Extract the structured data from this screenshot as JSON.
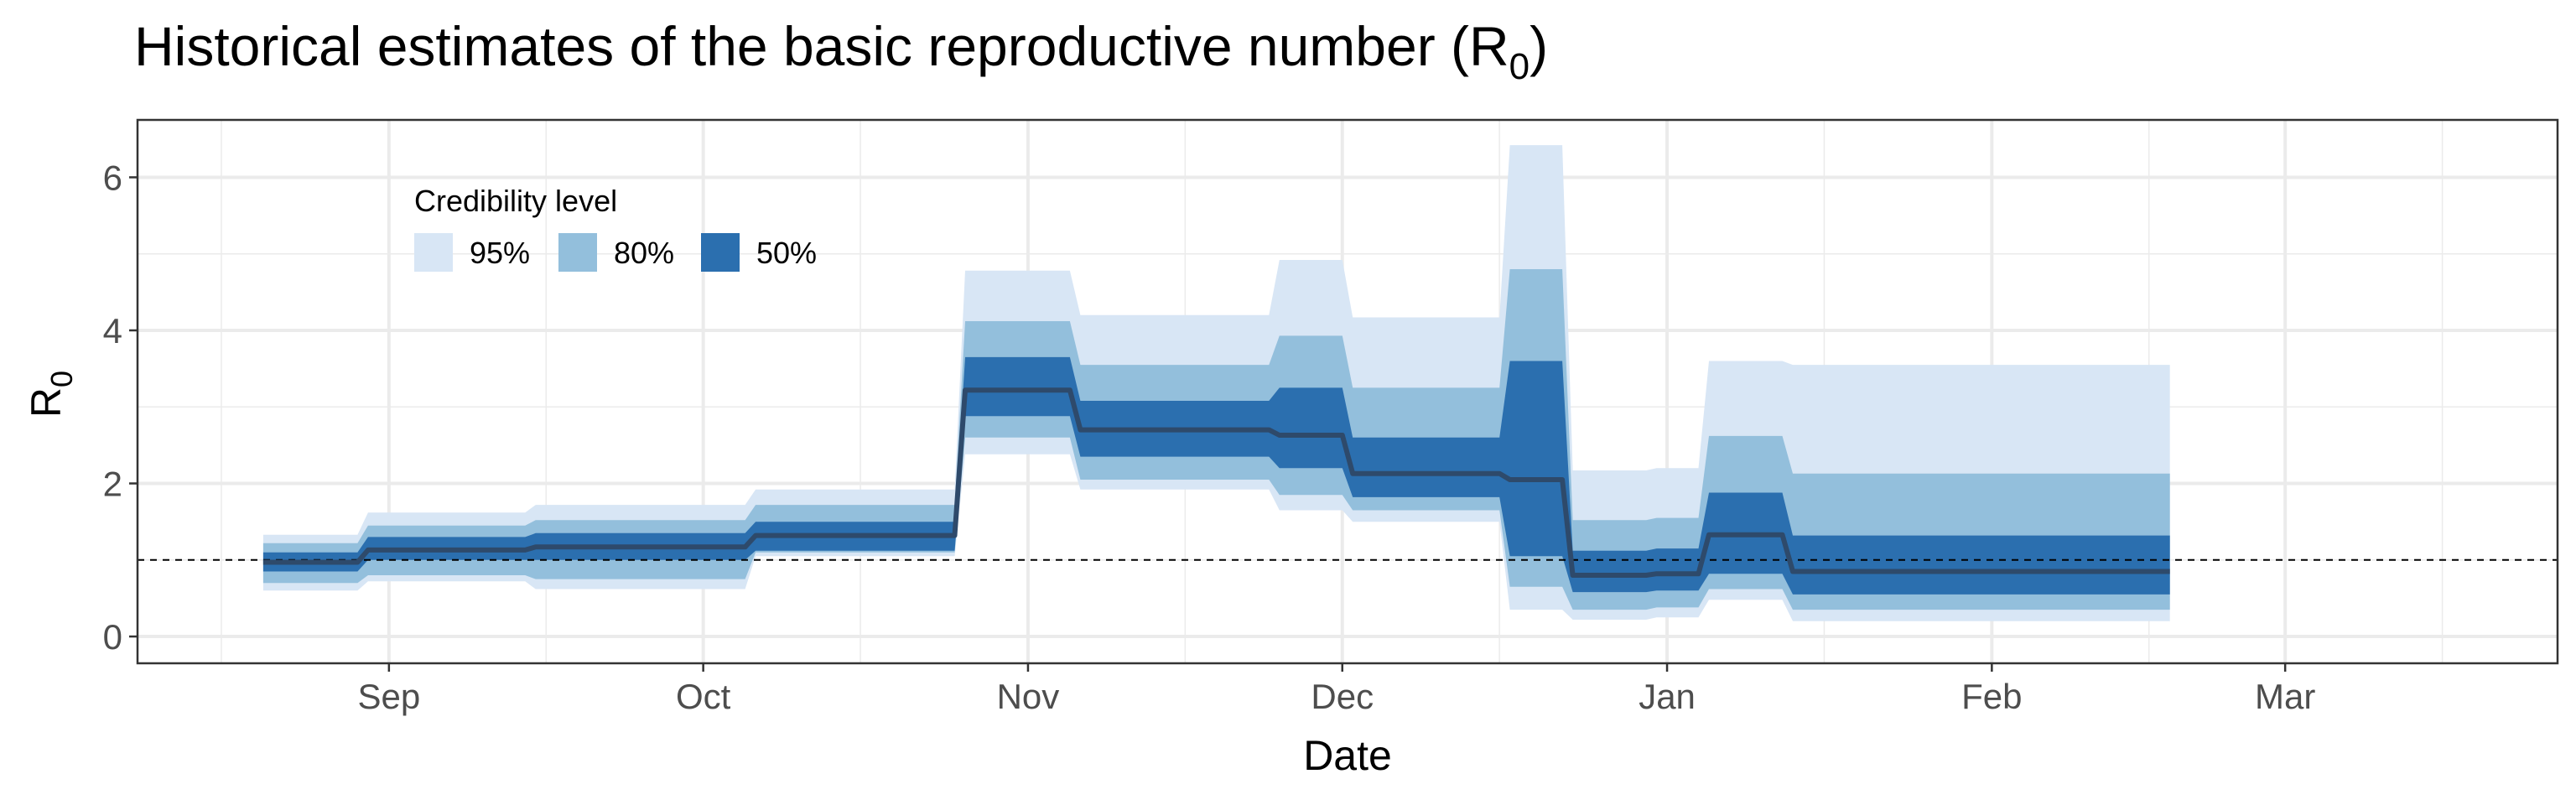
{
  "chart_data": {
    "type": "area",
    "title": "Historical estimates of the basic reproductive number (R",
    "title_subscript": "0",
    "title_suffix": ")",
    "xlabel": "Date",
    "ylabel": "R",
    "ylabel_subscript": "0",
    "x_ticks": [
      "Sep",
      "Oct",
      "Nov",
      "Dec",
      "Jan",
      "Feb",
      "Mar"
    ],
    "y_ticks": [
      "0",
      "2",
      "4",
      "6"
    ],
    "xlim": [
      "2020-08-08",
      "2021-03-27"
    ],
    "ylim": [
      -0.35,
      6.75
    ],
    "grid": true,
    "reference_line": 1,
    "legend": {
      "title": "Credibility level",
      "position": "top-left",
      "entries": [
        {
          "label": "95%",
          "color": "#d8e6f5"
        },
        {
          "label": "80%",
          "color": "#93bfdc"
        },
        {
          "label": "50%",
          "color": "#2b6faf"
        }
      ]
    },
    "median_color": "#2e4a6b",
    "x": [
      "2020-08-20",
      "2020-08-29",
      "2020-08-30",
      "2020-09-14",
      "2020-09-15",
      "2020-10-05",
      "2020-10-06",
      "2020-10-25",
      "2020-10-26",
      "2020-11-05",
      "2020-11-06",
      "2020-11-24",
      "2020-11-25",
      "2020-12-01",
      "2020-12-02",
      "2020-12-16",
      "2020-12-17",
      "2020-12-22",
      "2020-12-23",
      "2020-12-30",
      "2020-12-31",
      "2021-01-04",
      "2021-01-05",
      "2021-01-12",
      "2021-01-13",
      "2021-02-18"
    ],
    "series": [
      {
        "name": "95%",
        "upper": [
          1.33,
          1.33,
          1.62,
          1.62,
          1.72,
          1.72,
          1.92,
          1.92,
          4.78,
          4.78,
          4.2,
          4.2,
          4.92,
          4.92,
          4.17,
          4.17,
          6.42,
          6.42,
          2.17,
          2.17,
          2.2,
          2.2,
          3.6,
          3.6,
          3.55,
          3.55
        ],
        "lower": [
          0.6,
          0.6,
          0.72,
          0.72,
          0.62,
          0.62,
          1.05,
          1.05,
          2.38,
          2.38,
          1.92,
          1.92,
          1.65,
          1.65,
          1.5,
          1.5,
          0.35,
          0.35,
          0.22,
          0.22,
          0.25,
          0.25,
          0.48,
          0.48,
          0.2,
          0.2
        ]
      },
      {
        "name": "80%",
        "upper": [
          1.22,
          1.22,
          1.45,
          1.45,
          1.52,
          1.52,
          1.72,
          1.72,
          4.12,
          4.12,
          3.55,
          3.55,
          3.93,
          3.93,
          3.25,
          3.25,
          4.8,
          4.8,
          1.52,
          1.52,
          1.55,
          1.55,
          2.62,
          2.62,
          2.13,
          2.13
        ],
        "lower": [
          0.7,
          0.7,
          0.8,
          0.8,
          0.75,
          0.75,
          1.1,
          1.1,
          2.6,
          2.6,
          2.05,
          2.05,
          1.85,
          1.85,
          1.65,
          1.65,
          0.65,
          0.65,
          0.35,
          0.35,
          0.38,
          0.38,
          0.62,
          0.62,
          0.35,
          0.35
        ]
      },
      {
        "name": "50%",
        "upper": [
          1.1,
          1.1,
          1.3,
          1.3,
          1.35,
          1.35,
          1.5,
          1.5,
          3.65,
          3.65,
          3.08,
          3.08,
          3.25,
          3.25,
          2.6,
          2.6,
          3.6,
          3.6,
          1.12,
          1.12,
          1.15,
          1.15,
          1.88,
          1.88,
          1.32,
          1.32
        ],
        "lower": [
          0.85,
          0.85,
          1.0,
          1.0,
          1.0,
          1.0,
          1.12,
          1.12,
          2.88,
          2.88,
          2.35,
          2.35,
          2.2,
          2.2,
          1.82,
          1.82,
          1.05,
          1.05,
          0.58,
          0.58,
          0.6,
          0.6,
          0.82,
          0.82,
          0.55,
          0.55
        ]
      },
      {
        "name": "median",
        "values": [
          0.97,
          0.97,
          1.13,
          1.13,
          1.17,
          1.17,
          1.32,
          1.32,
          3.22,
          3.22,
          2.7,
          2.7,
          2.63,
          2.63,
          2.13,
          2.13,
          2.05,
          2.05,
          0.8,
          0.8,
          0.82,
          0.82,
          1.33,
          1.33,
          0.85,
          0.85
        ]
      }
    ]
  }
}
